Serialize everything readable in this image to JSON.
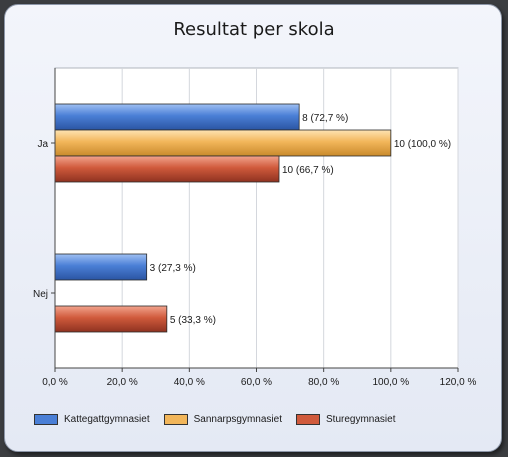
{
  "chart_data": {
    "type": "bar",
    "orientation": "horizontal",
    "title": "Resultat per skola",
    "categories": [
      "Ja",
      "Nej"
    ],
    "series": [
      {
        "name": "Kattegattgymnasiet",
        "color": "#4a7fd6",
        "values": [
          72.7,
          27.3
        ],
        "labels": [
          "8 (72,7 %)",
          "3 (27,3 %)"
        ]
      },
      {
        "name": "Sannarpsgymnasiet",
        "color": "#f2b65a",
        "values": [
          100.0,
          null
        ],
        "labels": [
          "10 (100,0 %)",
          ""
        ]
      },
      {
        "name": "Sturegymnasiet",
        "color": "#d05a3c",
        "values": [
          66.7,
          33.3
        ],
        "labels": [
          "10 (66,7 %)",
          "5 (33,3 %)"
        ]
      }
    ],
    "xlim": [
      0,
      120
    ],
    "xticks": [
      0,
      20,
      40,
      60,
      80,
      100,
      120
    ],
    "xtick_labels": [
      "0,0 %",
      "20,0 %",
      "40,0 %",
      "60,0 %",
      "80,0 %",
      "100,0 %",
      "120,0 %"
    ],
    "grid": true,
    "legend_position": "bottom"
  }
}
